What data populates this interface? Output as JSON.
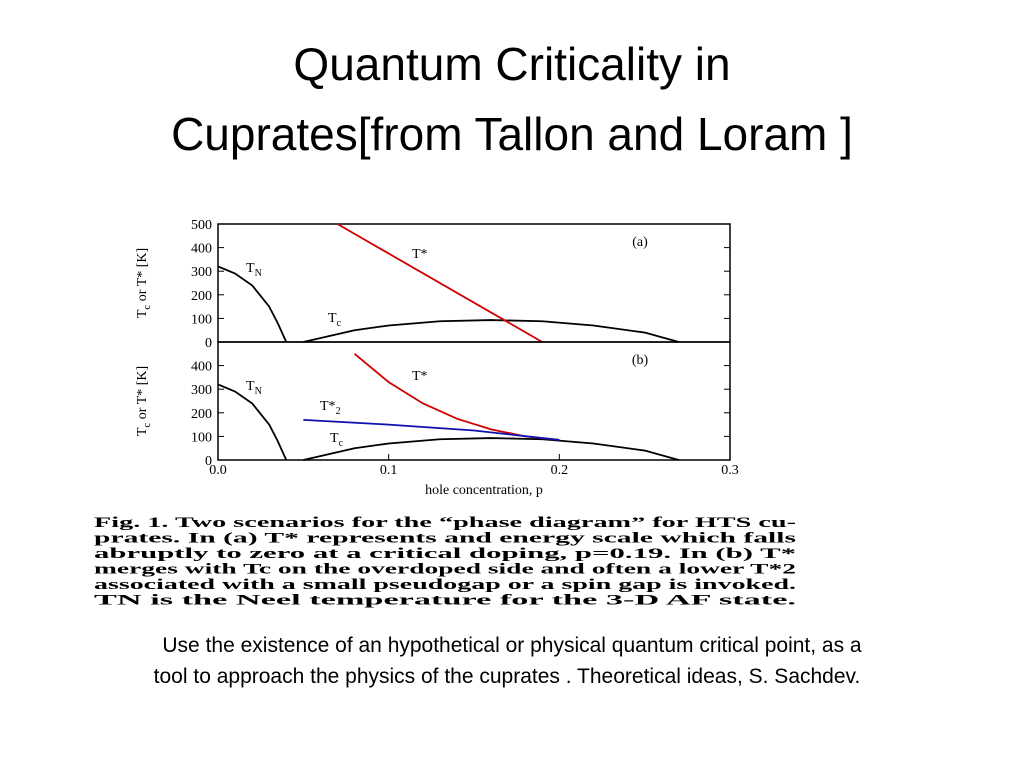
{
  "title_lines": [
    "Quantum Criticality in",
    "Cuprates[from Tallon and Loram ]"
  ],
  "chart_data": [
    {
      "type": "line",
      "panel_label": "(a)",
      "ylabel_parts": [
        {
          "text": "T"
        },
        {
          "text": "c",
          "sub": true
        },
        {
          "text": " or T* [K]"
        }
      ],
      "xlim": [
        0,
        0.3
      ],
      "ylim": [
        0,
        500
      ],
      "yticks": [
        0,
        100,
        200,
        300,
        400,
        500
      ],
      "series": [
        {
          "name": "T",
          "sub": "N",
          "color": "#000000",
          "x": [
            0,
            0.01,
            0.02,
            0.03,
            0.035,
            0.04
          ],
          "values": [
            320,
            290,
            240,
            150,
            80,
            0
          ]
        },
        {
          "name": "T",
          "sub": "c",
          "color": "#000000",
          "x": [
            0.05,
            0.08,
            0.1,
            0.13,
            0.16,
            0.19,
            0.22,
            0.25,
            0.27
          ],
          "values": [
            0,
            50,
            70,
            88,
            93,
            88,
            70,
            40,
            0
          ]
        },
        {
          "name": "T*",
          "color": "#d00000",
          "x": [
            0.07,
            0.19
          ],
          "values": [
            500,
            0
          ]
        }
      ]
    },
    {
      "type": "line",
      "panel_label": "(b)",
      "ylabel_parts": [
        {
          "text": "T"
        },
        {
          "text": "c",
          "sub": true
        },
        {
          "text": " or T* [K]"
        }
      ],
      "xlabel": "hole concentration, p",
      "xlim": [
        0,
        0.3
      ],
      "xticks": [
        {
          "value": 0,
          "label": "0.0"
        },
        0.1,
        0.2,
        0.3
      ],
      "ylim": [
        0,
        500
      ],
      "yticks": [
        0,
        100,
        200,
        300,
        400
      ],
      "series": [
        {
          "name": "T",
          "sub": "N",
          "color": "#000000",
          "x": [
            0,
            0.01,
            0.02,
            0.03,
            0.035,
            0.04
          ],
          "values": [
            320,
            290,
            240,
            150,
            80,
            0
          ]
        },
        {
          "name": "T",
          "sub": "c",
          "color": "#000000",
          "x": [
            0.05,
            0.08,
            0.1,
            0.13,
            0.16,
            0.19,
            0.22,
            0.25,
            0.27
          ],
          "values": [
            0,
            50,
            70,
            88,
            93,
            88,
            70,
            40,
            0
          ]
        },
        {
          "name": "T*",
          "color": "#d00000",
          "x": [
            0.08,
            0.1,
            0.12,
            0.14,
            0.16,
            0.18,
            0.2
          ],
          "values": [
            450,
            330,
            240,
            175,
            130,
            100,
            85
          ]
        },
        {
          "name": "T*",
          "sub": "2",
          "color": "#1010b0",
          "x": [
            0.05,
            0.1,
            0.15,
            0.2
          ],
          "values": [
            170,
            150,
            125,
            85
          ]
        }
      ]
    }
  ],
  "caption": [
    "Fig. 1. Two scenarios for the “phase diagram” for HTS cu-",
    "prates. In (a) T* represents and energy scale which falls",
    "abruptly to zero at a critical doping, p=0.19. In (b) T*",
    "merges with Tc on the overdoped side and often a lower T*2",
    "associated with a small pseudogap or a spin gap is invoked.",
    "TN is the Neel temperature for the 3-D AF state."
  ],
  "body": [
    "Use the existence of an hypothetical or physical quantum critical point, as a",
    "tool to approach the physics of the cuprates . Theoretical ideas, S. Sachdev."
  ]
}
